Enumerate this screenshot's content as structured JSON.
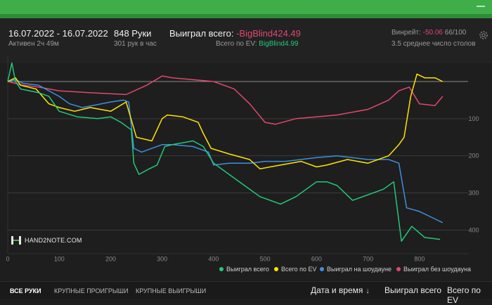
{
  "header": {
    "date_range": "16.07.2022 - 16.07.2022",
    "active_time": "Активен 2ч 49м",
    "hands": "848 Руки",
    "hands_per_hour": "301 рук в час",
    "won_label": "Выиграл всего:",
    "won_value": "-BigBlind424.49",
    "ev_label": "Всего по EV:",
    "ev_value": "BigBlind4.99",
    "winrate_label": "Винрейт:",
    "winrate_value": "-50.06",
    "winrate_suffix": "66/100",
    "avg_tables": "3.5 среднее число столов"
  },
  "logo_text": "HAND2NOTE.COM",
  "chart_data": {
    "type": "line",
    "x_ticks": [
      "0",
      "100",
      "200",
      "300",
      "400",
      "500",
      "600",
      "700",
      "800"
    ],
    "y_ticks": [
      "100",
      "200",
      "300",
      "400"
    ],
    "x_range": [
      0,
      848
    ],
    "y_range": [
      -50,
      430
    ],
    "y_inverted": true,
    "grid": true,
    "legend_position": "bottom-right",
    "series": [
      {
        "name": "Выиграл всего",
        "color": "#23c97a",
        "points": [
          [
            0,
            0
          ],
          [
            8,
            -50
          ],
          [
            15,
            0
          ],
          [
            25,
            20
          ],
          [
            60,
            30
          ],
          [
            80,
            40
          ],
          [
            100,
            80
          ],
          [
            135,
            95
          ],
          [
            175,
            100
          ],
          [
            200,
            95
          ],
          [
            220,
            110
          ],
          [
            240,
            130
          ],
          [
            245,
            220
          ],
          [
            255,
            250
          ],
          [
            275,
            235
          ],
          [
            290,
            225
          ],
          [
            305,
            175
          ],
          [
            320,
            170
          ],
          [
            360,
            160
          ],
          [
            380,
            175
          ],
          [
            400,
            220
          ],
          [
            430,
            250
          ],
          [
            460,
            280
          ],
          [
            490,
            310
          ],
          [
            530,
            330
          ],
          [
            560,
            310
          ],
          [
            600,
            270
          ],
          [
            620,
            270
          ],
          [
            640,
            280
          ],
          [
            670,
            320
          ],
          [
            730,
            290
          ],
          [
            750,
            270
          ],
          [
            765,
            430
          ],
          [
            785,
            390
          ],
          [
            810,
            420
          ],
          [
            840,
            425
          ]
        ]
      },
      {
        "name": "Всего по EV",
        "color": "#ffe400",
        "points": [
          [
            0,
            0
          ],
          [
            15,
            -10
          ],
          [
            25,
            10
          ],
          [
            55,
            20
          ],
          [
            80,
            60
          ],
          [
            100,
            70
          ],
          [
            130,
            80
          ],
          [
            160,
            70
          ],
          [
            200,
            80
          ],
          [
            230,
            55
          ],
          [
            250,
            150
          ],
          [
            280,
            160
          ],
          [
            300,
            100
          ],
          [
            310,
            90
          ],
          [
            340,
            95
          ],
          [
            370,
            110
          ],
          [
            380,
            140
          ],
          [
            395,
            180
          ],
          [
            430,
            195
          ],
          [
            470,
            210
          ],
          [
            490,
            235
          ],
          [
            530,
            225
          ],
          [
            570,
            215
          ],
          [
            600,
            230
          ],
          [
            620,
            225
          ],
          [
            660,
            210
          ],
          [
            700,
            220
          ],
          [
            740,
            200
          ],
          [
            760,
            170
          ],
          [
            770,
            150
          ],
          [
            783,
            40
          ],
          [
            795,
            -20
          ],
          [
            810,
            -10
          ],
          [
            830,
            -10
          ],
          [
            845,
            0
          ]
        ]
      },
      {
        "name": "Выиграл на шоудауне",
        "color": "#3d8fe0",
        "points": [
          [
            0,
            0
          ],
          [
            15,
            -5
          ],
          [
            30,
            5
          ],
          [
            60,
            10
          ],
          [
            100,
            40
          ],
          [
            120,
            60
          ],
          [
            145,
            70
          ],
          [
            200,
            55
          ],
          [
            225,
            50
          ],
          [
            235,
            55
          ],
          [
            245,
            180
          ],
          [
            260,
            190
          ],
          [
            280,
            180
          ],
          [
            300,
            170
          ],
          [
            320,
            170
          ],
          [
            360,
            175
          ],
          [
            390,
            190
          ],
          [
            400,
            225
          ],
          [
            430,
            220
          ],
          [
            470,
            220
          ],
          [
            500,
            215
          ],
          [
            540,
            215
          ],
          [
            600,
            205
          ],
          [
            640,
            200
          ],
          [
            700,
            210
          ],
          [
            740,
            210
          ],
          [
            760,
            220
          ],
          [
            775,
            340
          ],
          [
            800,
            350
          ],
          [
            830,
            370
          ],
          [
            845,
            380
          ]
        ]
      },
      {
        "name": "Выиграл без шоудауна",
        "color": "#e0486e",
        "points": [
          [
            0,
            0
          ],
          [
            30,
            10
          ],
          [
            60,
            15
          ],
          [
            100,
            25
          ],
          [
            160,
            30
          ],
          [
            230,
            35
          ],
          [
            270,
            10
          ],
          [
            300,
            -15
          ],
          [
            320,
            -10
          ],
          [
            360,
            -5
          ],
          [
            400,
            0
          ],
          [
            440,
            20
          ],
          [
            470,
            60
          ],
          [
            500,
            110
          ],
          [
            520,
            115
          ],
          [
            560,
            100
          ],
          [
            600,
            95
          ],
          [
            640,
            90
          ],
          [
            700,
            75
          ],
          [
            740,
            50
          ],
          [
            760,
            25
          ],
          [
            780,
            15
          ],
          [
            800,
            60
          ],
          [
            830,
            65
          ],
          [
            845,
            40
          ]
        ]
      }
    ]
  },
  "tabs": [
    "ВСЕ РУКИ",
    "КРУПНЫЕ ПРОИГРЫШИ",
    "КРУПНЫЕ ВЫИГРЫШИ"
  ],
  "columns": {
    "date_time": "Дата и время",
    "sort_arrow": "↓",
    "won_total": "Выиграл всего",
    "ev_total": "Всего по EV"
  },
  "colors": {
    "accent": "#3fae49",
    "negative": "#e0486e",
    "positive": "#23c97a"
  }
}
